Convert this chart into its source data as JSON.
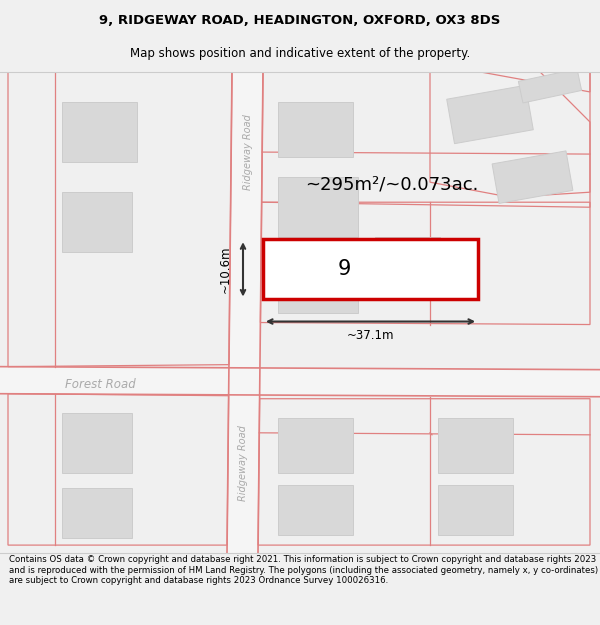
{
  "title_line1": "9, RIDGEWAY ROAD, HEADINGTON, OXFORD, OX3 8DS",
  "title_line2": "Map shows position and indicative extent of the property.",
  "footer_text": "Contains OS data © Crown copyright and database right 2021. This information is subject to Crown copyright and database rights 2023 and is reproduced with the permission of HM Land Registry. The polygons (including the associated geometry, namely x, y co-ordinates) are subject to Crown copyright and database rights 2023 Ordnance Survey 100026316.",
  "bg_color": "#f0f0f0",
  "map_bg": "#ffffff",
  "prop_edge": "#e08080",
  "prop_fill": "none",
  "building_fill": "#d8d8d8",
  "building_edge": "#cccccc",
  "highlight_edge": "#cc0000",
  "highlight_lw": 2.5,
  "road_label_color": "#aaaaaa",
  "dim_color": "#333333",
  "area_label": "~295m²/~0.073ac.",
  "width_label": "~37.1m",
  "height_label": "~10.6m",
  "property_label": "9",
  "road_label_upper": "Ridgeway Road",
  "road_label_lower": "Ridgeway Road",
  "road_label_horiz": "Forest Road"
}
